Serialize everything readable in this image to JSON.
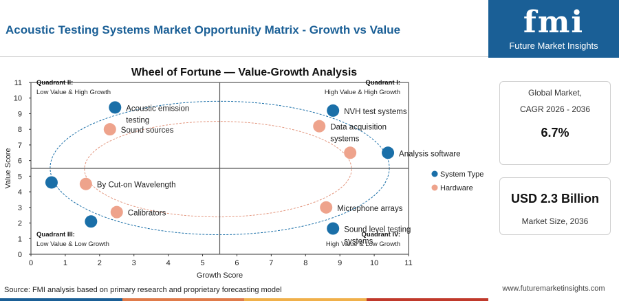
{
  "page": {
    "title": "Acoustic Testing Systems Market Opportunity Matrix - Growth vs Value",
    "source": "Source: FMI analysis based on primary research and proprietary forecasting model",
    "website": "www.futuremarketinsights.com",
    "bar_colors": [
      "#1a5f96",
      "#e07b4a",
      "#f0b04a",
      "#c0392b"
    ]
  },
  "logo": {
    "mark": "fmi",
    "subtitle": "Future Market Insights"
  },
  "stats": {
    "cagr_label_1": "Global Market,",
    "cagr_label_2": "CAGR 2026 - 2036",
    "cagr_value": "6.7%",
    "size_value": "USD 2.3 Billion",
    "size_label": "Market Size, 2036"
  },
  "chart_data": {
    "type": "scatter",
    "title": "Wheel of Fortune — Value-Growth Analysis",
    "xlabel": "Growth Score",
    "ylabel": "Value Score",
    "xlim": [
      0,
      11
    ],
    "ylim": [
      0,
      11
    ],
    "xticks": [
      "0",
      "1",
      "2",
      "3",
      "4",
      "5",
      "6",
      "7",
      "8",
      "9",
      "10",
      "11"
    ],
    "yticks": [
      "0",
      "1",
      "2",
      "3",
      "4",
      "5",
      "6",
      "7",
      "8",
      "9",
      "10",
      "11"
    ],
    "divider_x": 5.5,
    "divider_y": 5.5,
    "legend_position": "right",
    "quadrants": [
      {
        "id": "q2",
        "name": "Quadrant II:",
        "desc": "Low Value & High Growth"
      },
      {
        "id": "q1",
        "name": "Quadrant I:",
        "desc": "High Value & High Growth"
      },
      {
        "id": "q3",
        "name": "Quadrant III:",
        "desc": "Low Value & Low Growth"
      },
      {
        "id": "q4",
        "name": "Quadrant IV:",
        "desc": "High Value & Low Growth"
      }
    ],
    "series": [
      {
        "name": "System Type",
        "color": "#1a6fa8",
        "ring_color": "#1a6fa8",
        "points": [
          {
            "x": 2.45,
            "y": 9.4,
            "label": [
              "Acoustic emission",
              "testing"
            ]
          },
          {
            "x": 8.8,
            "y": 9.2,
            "label": [
              "NVH test systems"
            ]
          },
          {
            "x": 10.4,
            "y": 6.5,
            "label": [
              "Analysis software"
            ]
          },
          {
            "x": 0.6,
            "y": 4.6,
            "label": []
          },
          {
            "x": 1.75,
            "y": 2.1,
            "label": []
          },
          {
            "x": 8.8,
            "y": 1.65,
            "label": [
              "Sound level testing",
              "systems"
            ]
          }
        ]
      },
      {
        "name": "Hardware",
        "color": "#eea38c",
        "ring_color": "#e3967e",
        "points": [
          {
            "x": 2.3,
            "y": 8.0,
            "label": [
              "Sound sources"
            ]
          },
          {
            "x": 8.4,
            "y": 8.2,
            "label": [
              "Data acquisition",
              "systems"
            ]
          },
          {
            "x": 9.3,
            "y": 6.5,
            "label": []
          },
          {
            "x": 1.6,
            "y": 4.5,
            "label": [
              "By Cut-on Wavelength"
            ]
          },
          {
            "x": 2.5,
            "y": 2.7,
            "label": [
              "Calibrators"
            ]
          },
          {
            "x": 8.6,
            "y": 3.0,
            "label": [
              "Microphone arrays"
            ]
          }
        ]
      }
    ]
  }
}
